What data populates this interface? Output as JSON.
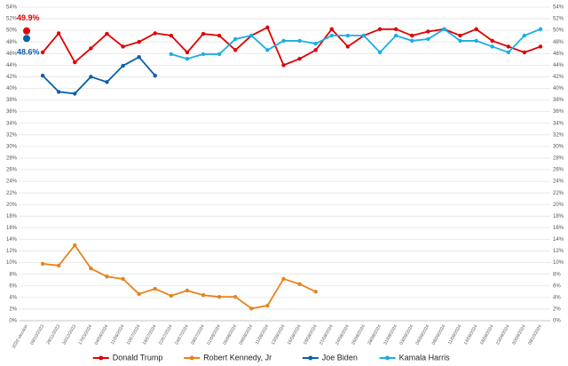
{
  "chart_data": {
    "type": "line",
    "categories": [
      "2020 election",
      "09/10/2023",
      "29/11/2023",
      "30/12/2023",
      "17/03/2024",
      "04/04/2024",
      "11/06/2024",
      "10/07/2024",
      "16/07/2024",
      "22/07/2024",
      "24/07/2024",
      "28/07/2024",
      "01/08/2024",
      "05/08/2024",
      "09/08/2024",
      "11/08/2024",
      "13/08/2024",
      "16/08/2024",
      "18/08/2024",
      "21/08/2024",
      "24/08/2024",
      "26/08/2024",
      "28/08/2024",
      "31/08/2024",
      "03/09/2024",
      "06/09/2024",
      "08/09/2024",
      "11/09/2024",
      "14/09/2024",
      "18/09/2024",
      "23/09/2024",
      "30/09/2024",
      "08/10/2024"
    ],
    "series": [
      {
        "name": "Donald Trump",
        "color": "#e00000",
        "values": [
          null,
          46.2,
          49.5,
          44.5,
          46.9,
          49.4,
          47.2,
          48.0,
          49.5,
          49.1,
          46.2,
          49.4,
          49.1,
          46.6,
          49.1,
          50.5,
          44.0,
          45.1,
          46.6,
          50.2,
          47.2,
          49.1,
          50.2,
          50.2,
          49.1,
          49.8,
          50.2,
          49.1,
          50.2,
          48.2,
          47.2,
          46.2,
          47.2
        ]
      },
      {
        "name": "Robert Kennedy, Jr",
        "color": "#e8821e",
        "values": [
          null,
          9.8,
          9.5,
          13.0,
          9.0,
          7.6,
          7.2,
          4.6,
          5.5,
          4.3,
          5.2,
          4.4,
          4.1,
          4.1,
          2.1,
          2.6,
          7.2,
          6.3,
          5.0,
          null,
          null,
          null,
          null,
          null,
          null,
          null,
          null,
          null,
          null,
          null,
          null,
          null,
          null
        ]
      },
      {
        "name": "Joe Biden",
        "color": "#0b5ea8",
        "values": [
          null,
          42.2,
          39.4,
          39.1,
          42.0,
          41.1,
          43.9,
          45.4,
          42.2,
          null,
          null,
          null,
          null,
          null,
          null,
          null,
          null,
          null,
          null,
          null,
          null,
          null,
          null,
          null,
          null,
          null,
          null,
          null,
          null,
          null,
          null,
          null,
          null
        ]
      },
      {
        "name": "Kamala Harris",
        "color": "#1aaee5",
        "values": [
          null,
          null,
          null,
          null,
          null,
          null,
          null,
          null,
          null,
          45.9,
          45.1,
          45.9,
          45.9,
          48.5,
          49.1,
          46.6,
          48.2,
          48.2,
          47.7,
          49.1,
          49.1,
          49.1,
          46.2,
          49.1,
          48.2,
          48.5,
          50.2,
          48.2,
          48.2,
          47.2,
          46.2,
          49.1,
          50.2
        ]
      }
    ],
    "annotations": [
      {
        "label": "49.9%",
        "value": 49.9,
        "color": "#e00000"
      },
      {
        "label": "48.6%",
        "value": 48.6,
        "color": "#0b5ea8"
      }
    ],
    "ylim": [
      0,
      54
    ],
    "yticks": [
      {
        "value": 0,
        "label": "0%"
      },
      {
        "value": 2,
        "label": "2%"
      },
      {
        "value": 4,
        "label": "4%"
      },
      {
        "value": 6,
        "label": "6%"
      },
      {
        "value": 8,
        "label": "8%"
      },
      {
        "value": 10,
        "label": "10%"
      },
      {
        "value": 12,
        "label": "12%"
      },
      {
        "value": 14,
        "label": "14%"
      },
      {
        "value": 16,
        "label": "16%"
      },
      {
        "value": 18,
        "label": "18%"
      },
      {
        "value": 20,
        "label": "20%"
      },
      {
        "value": 22,
        "label": "22%"
      },
      {
        "value": 24,
        "label": "24%"
      },
      {
        "value": 26,
        "label": "26%"
      },
      {
        "value": 28,
        "label": "28%"
      },
      {
        "value": 30,
        "label": "30%"
      },
      {
        "value": 32,
        "label": "32%"
      },
      {
        "value": 34,
        "label": "34%"
      },
      {
        "value": 36,
        "label": "36%"
      },
      {
        "value": 38,
        "label": "38%"
      },
      {
        "value": 40,
        "label": "40%"
      },
      {
        "value": 42,
        "label": "42%"
      },
      {
        "value": 44,
        "label": "44%"
      },
      {
        "value": 46,
        "label": "46%"
      },
      {
        "value": 48,
        "label": "48%"
      },
      {
        "value": 50,
        "label": "50%"
      },
      {
        "value": 52,
        "label": "52%"
      },
      {
        "value": 54,
        "label": "54%"
      }
    ],
    "grid": true,
    "legend": "bottom"
  }
}
